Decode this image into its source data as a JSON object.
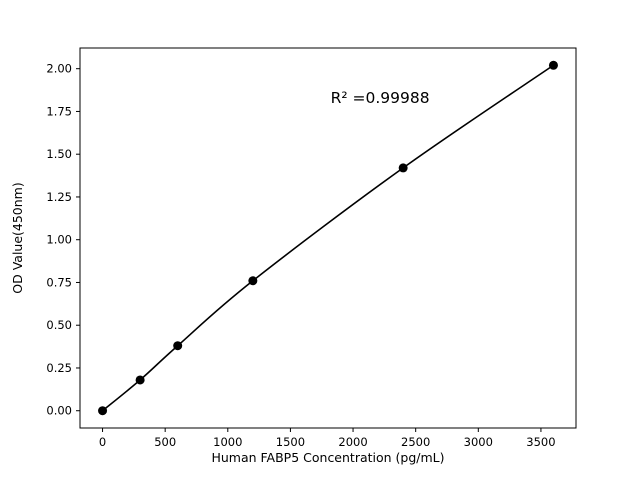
{
  "chart_data": {
    "type": "scatter",
    "title": "",
    "xlabel": "Human FABP5 Concentration (pg/mL)",
    "ylabel": "OD Value(450nm)",
    "annotation": "R² =0.99988",
    "x": [
      0,
      300,
      600,
      1200,
      2400,
      3600
    ],
    "y": [
      0.0,
      0.18,
      0.38,
      0.76,
      1.42,
      2.02
    ],
    "xlim": [
      -180,
      3780
    ],
    "ylim": [
      -0.101,
      2.121
    ],
    "xticks": [
      0,
      500,
      1000,
      1500,
      2000,
      2500,
      3000,
      3500
    ],
    "xticklabels": [
      "0",
      "500",
      "1000",
      "1500",
      "2000",
      "2500",
      "3000",
      "3500"
    ],
    "yticks": [
      0.0,
      0.25,
      0.5,
      0.75,
      1.0,
      1.25,
      1.5,
      1.75,
      2.0
    ],
    "yticklabels": [
      "0.00",
      "0.25",
      "0.50",
      "0.75",
      "1.00",
      "1.25",
      "1.50",
      "1.75",
      "2.00"
    ],
    "line_color": "#000000",
    "marker_color": "#000000",
    "marker_size": 4.5,
    "background": "#ffffff",
    "grid": false,
    "legend": null,
    "curve": "smooth"
  }
}
